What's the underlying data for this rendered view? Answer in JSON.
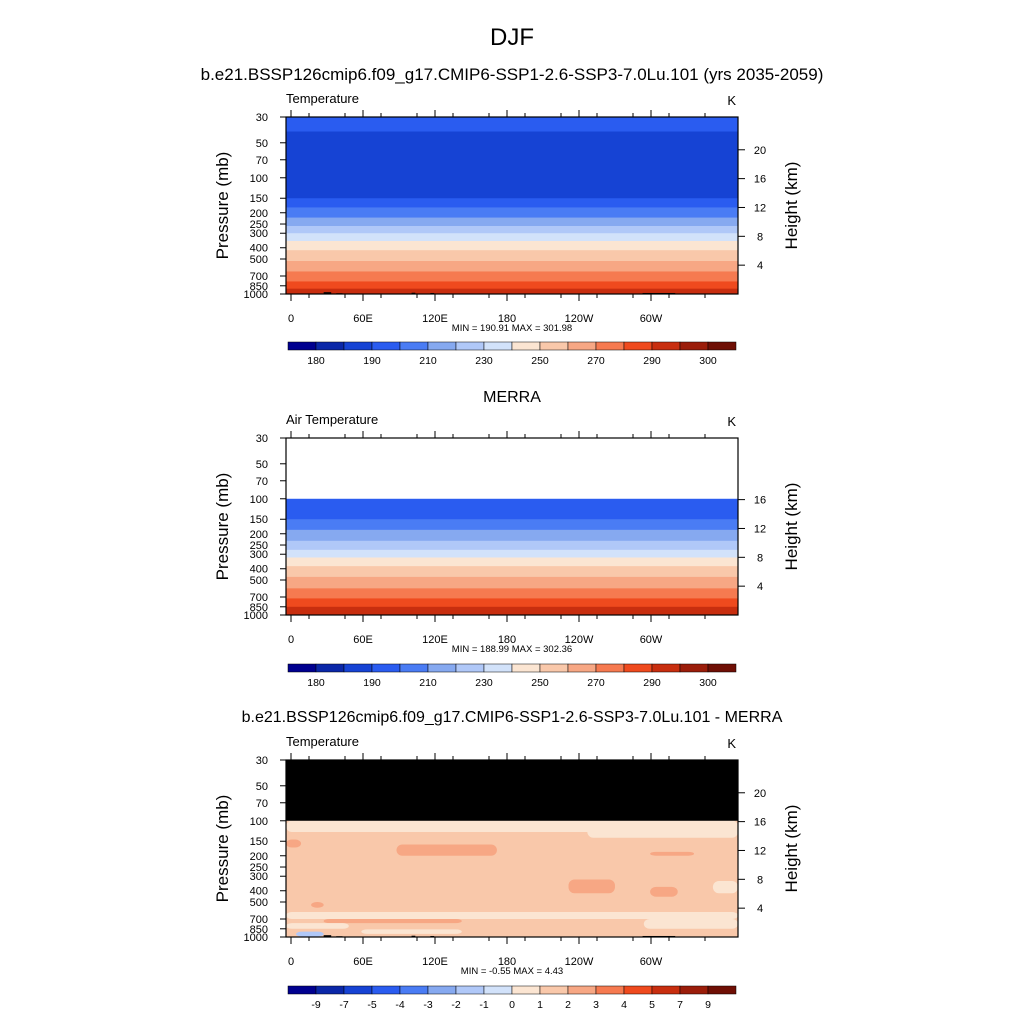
{
  "page": {
    "title": "DJF",
    "subtitle": "b.e21.BSSP126cmip6.f09_g17.CMIP6-SSP1-2.6-SSP3-7.0Lu.101 (yrs 2035-2059)"
  },
  "chart_data": [
    {
      "type": "heatmap",
      "panel_title": "",
      "variable": "Temperature",
      "units": "K",
      "ylabel_left": "Pressure (mb)",
      "ylabel_right": "Height (km)",
      "x_ticks": [
        "0",
        "60E",
        "120E",
        "180",
        "120W",
        "60W"
      ],
      "p_ticks": [
        30,
        50,
        70,
        100,
        150,
        200,
        250,
        300,
        400,
        500,
        700,
        850,
        1000
      ],
      "height_ticks": [
        4,
        8,
        12,
        16,
        20
      ],
      "y_range_mb": [
        1000,
        30
      ],
      "min_max_text": "MIN = 190.91  MAX = 301.98",
      "colorbar_labels": [
        "180",
        "190",
        "210",
        "230",
        "250",
        "270",
        "290",
        "300"
      ],
      "profile": [
        {
          "p": 30,
          "level": 3
        },
        {
          "p": 40,
          "level": 2
        },
        {
          "p": 130,
          "level": 2
        },
        {
          "p": 150,
          "level": 3
        },
        {
          "p": 180,
          "level": 4
        },
        {
          "p": 220,
          "level": 5
        },
        {
          "p": 260,
          "level": 6
        },
        {
          "p": 300,
          "level": 7
        },
        {
          "p": 350,
          "level": 8
        },
        {
          "p": 420,
          "level": 9
        },
        {
          "p": 520,
          "level": 10
        },
        {
          "p": 640,
          "level": 11
        },
        {
          "p": 780,
          "level": 12
        },
        {
          "p": 900,
          "level": 13
        },
        {
          "p": 1000,
          "level": 13
        }
      ],
      "masked_above_mb": null,
      "patches": [],
      "terrain": true
    },
    {
      "type": "heatmap",
      "panel_title": "MERRA",
      "variable": "Air Temperature",
      "units": "K",
      "ylabel_left": "Pressure (mb)",
      "ylabel_right": "Height (km)",
      "x_ticks": [
        "0",
        "60E",
        "120E",
        "180",
        "120W",
        "60W"
      ],
      "p_ticks": [
        30,
        50,
        70,
        100,
        150,
        200,
        250,
        300,
        400,
        500,
        700,
        850,
        1000
      ],
      "height_ticks": [
        4,
        8,
        12,
        16
      ],
      "y_range_mb": [
        1000,
        30
      ],
      "min_max_text": "MIN = 188.99  MAX = 302.36",
      "colorbar_labels": [
        "180",
        "190",
        "210",
        "230",
        "250",
        "270",
        "290",
        "300"
      ],
      "profile": [
        {
          "p": 100,
          "level": 3
        },
        {
          "p": 130,
          "level": 3
        },
        {
          "p": 150,
          "level": 4
        },
        {
          "p": 185,
          "level": 5
        },
        {
          "p": 230,
          "level": 6
        },
        {
          "p": 275,
          "level": 7
        },
        {
          "p": 320,
          "level": 8
        },
        {
          "p": 380,
          "level": 9
        },
        {
          "p": 470,
          "level": 10
        },
        {
          "p": 590,
          "level": 11
        },
        {
          "p": 720,
          "level": 12
        },
        {
          "p": 850,
          "level": 13
        },
        {
          "p": 1000,
          "level": 14
        }
      ],
      "masked_above_mb": 100,
      "patches": [],
      "terrain": false
    },
    {
      "type": "heatmap",
      "panel_title": "b.e21.BSSP126cmip6.f09_g17.CMIP6-SSP1-2.6-SSP3-7.0Lu.101 - MERRA",
      "variable": "Temperature",
      "units": "K",
      "ylabel_left": "Pressure (mb)",
      "ylabel_right": "Height (km)",
      "x_ticks": [
        "0",
        "60E",
        "120E",
        "180",
        "120W",
        "60W"
      ],
      "p_ticks": [
        30,
        50,
        70,
        100,
        150,
        200,
        250,
        300,
        400,
        500,
        700,
        850,
        1000
      ],
      "height_ticks": [
        4,
        8,
        12,
        16,
        20
      ],
      "y_range_mb": [
        1000,
        30
      ],
      "min_max_text": "MIN =  -0.55  MAX =   4.43",
      "colorbar_labels": [
        "-9",
        "-7",
        "-5",
        "-4",
        "-3",
        "-2",
        "-1",
        "0",
        "1",
        "2",
        "3",
        "4",
        "5",
        "7",
        "9"
      ],
      "profile": [
        {
          "p": 100,
          "level": 9
        },
        {
          "p": 1000,
          "level": 9
        }
      ],
      "masked_above_mb": 100,
      "mask_color": "#000000",
      "patches": [
        {
          "lon0": 0,
          "lon1": 360,
          "p0": 100,
          "p1": 125,
          "level": 8
        },
        {
          "lon0": 240,
          "lon1": 360,
          "p0": 100,
          "p1": 140,
          "level": 8
        },
        {
          "lon0": 60,
          "lon1": 110,
          "p0": 100,
          "p1": 120,
          "level": 8
        },
        {
          "lon0": 88,
          "lon1": 168,
          "p0": 160,
          "p1": 200,
          "level": 10
        },
        {
          "lon0": 225,
          "lon1": 262,
          "p0": 320,
          "p1": 420,
          "level": 10
        },
        {
          "lon0": 290,
          "lon1": 312,
          "p0": 370,
          "p1": 450,
          "level": 10
        },
        {
          "lon0": 0,
          "lon1": 12,
          "p0": 145,
          "p1": 170,
          "level": 10
        },
        {
          "lon0": 290,
          "lon1": 325,
          "p0": 185,
          "p1": 200,
          "level": 10
        },
        {
          "lon0": 340,
          "lon1": 360,
          "p0": 330,
          "p1": 420,
          "level": 8
        },
        {
          "lon0": 20,
          "lon1": 30,
          "p0": 500,
          "p1": 560,
          "level": 10
        },
        {
          "lon0": 0,
          "lon1": 360,
          "p0": 610,
          "p1": 700,
          "level": 8
        },
        {
          "lon0": 30,
          "lon1": 140,
          "p0": 700,
          "p1": 760,
          "level": 10
        },
        {
          "lon0": 0,
          "lon1": 50,
          "p0": 760,
          "p1": 850,
          "level": 8
        },
        {
          "lon0": 285,
          "lon1": 360,
          "p0": 700,
          "p1": 850,
          "level": 8
        },
        {
          "lon0": 60,
          "lon1": 140,
          "p0": 860,
          "p1": 940,
          "level": 8
        },
        {
          "lon0": 8,
          "lon1": 30,
          "p0": 900,
          "p1": 990,
          "level": 6
        }
      ],
      "terrain": true
    }
  ],
  "colors": {
    "abs_scale": [
      "#00008f",
      "#0a27a8",
      "#1643d4",
      "#2a5cf0",
      "#4a7cf4",
      "#86a9f0",
      "#b0c8f8",
      "#d2e2fa",
      "#fbe5d2",
      "#f9c8aa",
      "#f7a784",
      "#f67a50",
      "#ef4a1e",
      "#c82e0f",
      "#9b1d0a",
      "#6f0f05"
    ],
    "diff_scale": [
      "#00008f",
      "#0a27a8",
      "#1643d4",
      "#2a5cf0",
      "#4a7cf4",
      "#86a9f0",
      "#b0c8f8",
      "#d2e2fa",
      "#fbe5d2",
      "#f9c8aa",
      "#f7a784",
      "#f67a50",
      "#ef4a1e",
      "#c82e0f",
      "#9b1d0a",
      "#6f0f05"
    ]
  }
}
